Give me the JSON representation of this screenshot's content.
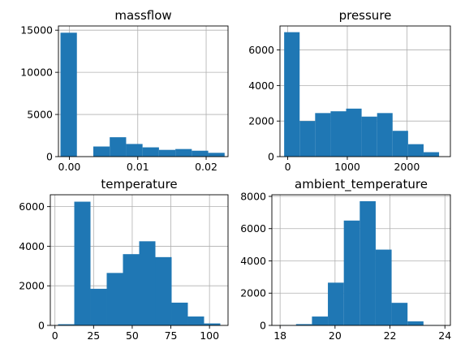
{
  "chart_data": [
    {
      "type": "bar",
      "subtype": "histogram",
      "title": "massflow",
      "grid": true,
      "color": "#1f77b4",
      "xlim": [
        -0.0016,
        0.0232
      ],
      "ylim": [
        0,
        15500
      ],
      "xticks": [
        0.0,
        0.01,
        0.02
      ],
      "xtick_labels": [
        "0.00",
        "0.01",
        "0.02"
      ],
      "yticks": [
        0,
        5000,
        10000,
        15000
      ],
      "ytick_labels": [
        "0",
        "5000",
        "10000",
        "15000"
      ],
      "bin_edges": [
        -0.0013,
        0.0011,
        0.0035,
        0.0059,
        0.0083,
        0.0107,
        0.0131,
        0.0155,
        0.0179,
        0.0203,
        0.0227
      ],
      "values": [
        14700,
        0,
        1200,
        2300,
        1500,
        1100,
        800,
        900,
        700,
        450
      ]
    },
    {
      "type": "bar",
      "subtype": "histogram",
      "title": "pressure",
      "grid": true,
      "color": "#1f77b4",
      "xlim": [
        -130,
        2730
      ],
      "ylim": [
        0,
        7350
      ],
      "xticks": [
        0,
        1000,
        2000
      ],
      "xtick_labels": [
        "0",
        "1000",
        "2000"
      ],
      "yticks": [
        0,
        2000,
        4000,
        6000
      ],
      "ytick_labels": [
        "0",
        "2000",
        "4000",
        "6000"
      ],
      "bin_edges": [
        -60,
        200,
        460,
        720,
        980,
        1240,
        1500,
        1760,
        2020,
        2280,
        2540
      ],
      "values": [
        7000,
        2000,
        2450,
        2550,
        2700,
        2250,
        2450,
        1450,
        700,
        250
      ]
    },
    {
      "type": "bar",
      "subtype": "histogram",
      "title": "temperature",
      "grid": true,
      "color": "#1f77b4",
      "xlim": [
        -3,
        112
      ],
      "ylim": [
        0,
        6600
      ],
      "xticks": [
        0,
        25,
        50,
        75,
        100
      ],
      "xtick_labels": [
        "0",
        "25",
        "50",
        "75",
        "100"
      ],
      "yticks": [
        0,
        2000,
        4000,
        6000
      ],
      "ytick_labels": [
        "0",
        "2000",
        "4000",
        "6000"
      ],
      "bin_edges": [
        2,
        12.5,
        23,
        33.5,
        44,
        54.5,
        65,
        75.5,
        86,
        96.5,
        107
      ],
      "values": [
        60,
        6250,
        1850,
        2650,
        3600,
        4250,
        3450,
        1150,
        450,
        100
      ]
    },
    {
      "type": "bar",
      "subtype": "histogram",
      "title": "ambient_temperature",
      "grid": true,
      "color": "#1f77b4",
      "xlim": [
        17.7,
        24.2
      ],
      "ylim": [
        0,
        8100
      ],
      "xticks": [
        18,
        20,
        22,
        24
      ],
      "xtick_labels": [
        "18",
        "20",
        "22",
        "24"
      ],
      "yticks": [
        0,
        2000,
        4000,
        6000,
        8000
      ],
      "ytick_labels": [
        "0",
        "2000",
        "4000",
        "6000",
        "8000"
      ],
      "bin_edges": [
        18.0,
        18.58,
        19.16,
        19.74,
        20.32,
        20.9,
        21.48,
        22.06,
        22.64,
        23.22,
        23.8
      ],
      "values": [
        20,
        80,
        550,
        2650,
        6500,
        7700,
        4700,
        1400,
        250,
        20
      ]
    }
  ]
}
